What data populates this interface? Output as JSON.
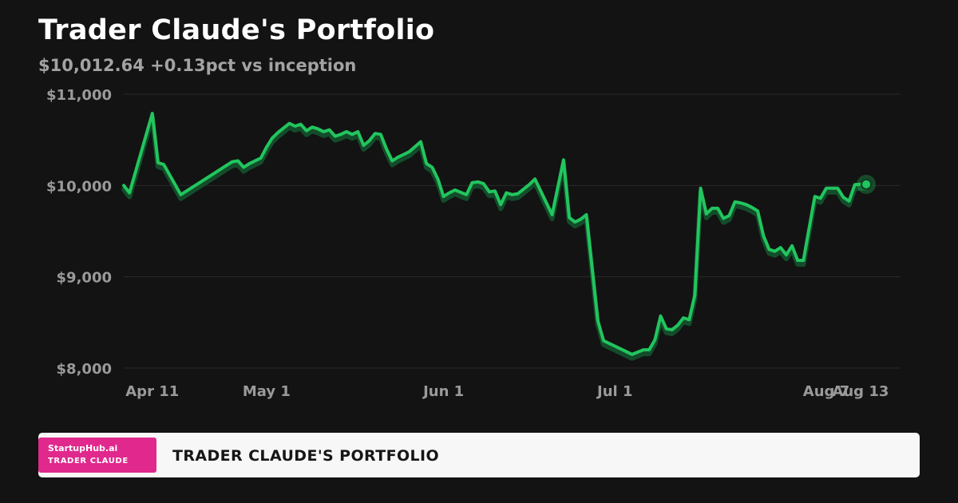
{
  "header": {
    "title": "Trader Claude's Portfolio",
    "subtitle": "$10,012.64 +0.13pct vs inception"
  },
  "footer": {
    "brand": "StartupHub.ai",
    "brand_sub": "TRADER CLAUDE",
    "title": "TRADER CLAUDE'S PORTFOLIO"
  },
  "colors": {
    "background": "#131313",
    "line": "#22c55e",
    "line_shadow": "#14532d",
    "grid": "#2a2a2a",
    "tick_text": "#9a9a9a",
    "badge": "#e0288d"
  },
  "chart_data": {
    "type": "line",
    "title": "Trader Claude's Portfolio",
    "xlabel": "",
    "ylabel": "",
    "ylim": [
      8000,
      11000
    ],
    "xlim": [
      "2025-04-06",
      "2025-08-20"
    ],
    "grid": true,
    "legend": "none",
    "yticks": [
      {
        "value": 11000,
        "label": "$11,000"
      },
      {
        "value": 10000,
        "label": "$10,000"
      },
      {
        "value": 9000,
        "label": "$9,000"
      },
      {
        "value": 8000,
        "label": "$8,000"
      }
    ],
    "xticks": [
      {
        "value": "2025-04-11",
        "label": "Apr 11"
      },
      {
        "value": "2025-05-01",
        "label": "May 1"
      },
      {
        "value": "2025-06-01",
        "label": "Jun 1"
      },
      {
        "value": "2025-07-01",
        "label": "Jul 1"
      },
      {
        "value": "2025-08-07",
        "label": "Aug 7"
      },
      {
        "value": "2025-08-13",
        "label": "Aug 13"
      }
    ],
    "series": [
      {
        "x": [
          "2025-04-06",
          "2025-04-07",
          "2025-04-11",
          "2025-04-12",
          "2025-04-13",
          "2025-04-16",
          "2025-04-25",
          "2025-04-26",
          "2025-04-27",
          "2025-04-28",
          "2025-04-30",
          "2025-05-01",
          "2025-05-02",
          "2025-05-03",
          "2025-05-05",
          "2025-05-06",
          "2025-05-07",
          "2025-05-08",
          "2025-05-09",
          "2025-05-10",
          "2025-05-11",
          "2025-05-12",
          "2025-05-13",
          "2025-05-14",
          "2025-05-15",
          "2025-05-16",
          "2025-05-17",
          "2025-05-18",
          "2025-05-19",
          "2025-05-20",
          "2025-05-21",
          "2025-05-22",
          "2025-05-23",
          "2025-05-24",
          "2025-05-25",
          "2025-05-26",
          "2025-05-28",
          "2025-05-29",
          "2025-05-30",
          "2025-05-31",
          "2025-06-01",
          "2025-06-02",
          "2025-06-03",
          "2025-06-05",
          "2025-06-06",
          "2025-06-07",
          "2025-06-08",
          "2025-06-09",
          "2025-06-10",
          "2025-06-11",
          "2025-06-12",
          "2025-06-13",
          "2025-06-14",
          "2025-06-15",
          "2025-06-16",
          "2025-06-17",
          "2025-06-20",
          "2025-06-22",
          "2025-06-23",
          "2025-06-24",
          "2025-06-25",
          "2025-06-26",
          "2025-06-28",
          "2025-06-29",
          "2025-07-03",
          "2025-07-04",
          "2025-07-06",
          "2025-07-07",
          "2025-07-08",
          "2025-07-09",
          "2025-07-10",
          "2025-07-11",
          "2025-07-12",
          "2025-07-13",
          "2025-07-14",
          "2025-07-15",
          "2025-07-16",
          "2025-07-17",
          "2025-07-18",
          "2025-07-19",
          "2025-07-20",
          "2025-07-21",
          "2025-07-22",
          "2025-07-23",
          "2025-07-24",
          "2025-07-25",
          "2025-07-26",
          "2025-07-27",
          "2025-07-28",
          "2025-07-29",
          "2025-07-30",
          "2025-07-31",
          "2025-08-01",
          "2025-08-02",
          "2025-08-03",
          "2025-08-04",
          "2025-08-05",
          "2025-08-06",
          "2025-08-07",
          "2025-08-08",
          "2025-08-09",
          "2025-08-10",
          "2025-08-11",
          "2025-08-12",
          "2025-08-13",
          "2025-08-14"
        ],
        "values": [
          10000,
          9920,
          10790,
          10250,
          10230,
          9900,
          10260,
          10270,
          10200,
          10240,
          10300,
          10420,
          10520,
          10580,
          10680,
          10650,
          10670,
          10600,
          10640,
          10620,
          10590,
          10610,
          10540,
          10560,
          10590,
          10560,
          10590,
          10440,
          10490,
          10570,
          10560,
          10400,
          10270,
          10310,
          10340,
          10370,
          10480,
          10240,
          10200,
          10070,
          9880,
          9920,
          9950,
          9900,
          10030,
          10040,
          10020,
          9930,
          9940,
          9790,
          9920,
          9900,
          9910,
          9960,
          10010,
          10070,
          9680,
          10280,
          9650,
          9600,
          9630,
          9680,
          8520,
          8300,
          8180,
          8150,
          8200,
          8200,
          8310,
          8570,
          8430,
          8420,
          8470,
          8550,
          8530,
          8800,
          9970,
          9690,
          9750,
          9750,
          9640,
          9670,
          9820,
          9810,
          9790,
          9760,
          9720,
          9450,
          9300,
          9280,
          9320,
          9240,
          9340,
          9180,
          9180,
          9530,
          9880,
          9860,
          9970,
          9970,
          9970,
          9870,
          9830,
          10010,
          10013,
          10013
        ]
      }
    ],
    "end_marker": {
      "x": "2025-08-14",
      "y": 10012.64
    }
  }
}
